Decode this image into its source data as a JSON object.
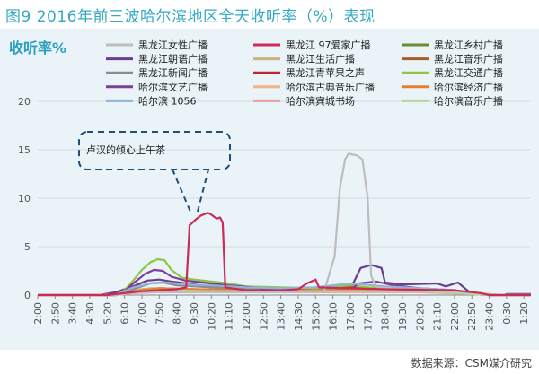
{
  "page_title": "图9  2016年前三波哈尔滨地区全天收听率（%）表现",
  "source_note": "数据来源：CSM媒介研究",
  "chart_data": {
    "type": "line",
    "title": "",
    "ylabel": "收听率%",
    "xlabel": "",
    "ylim": [
      0,
      20
    ],
    "yticks": [
      0,
      5,
      10,
      15,
      20
    ],
    "grid": true,
    "legend_position": "top",
    "x_tick_labels": [
      "2:00",
      "2:50",
      "3:40",
      "4:30",
      "5:20",
      "6:10",
      "7:00",
      "7:50",
      "8:40",
      "9:30",
      "10:20",
      "11:10",
      "12:00",
      "12:50",
      "13:40",
      "14:30",
      "15:20",
      "16:10",
      "17:00",
      "17:50",
      "18:40",
      "19:30",
      "20:20",
      "21:10",
      "22:00",
      "22:50",
      "23:40",
      "0:30",
      "1:20"
    ],
    "annotation": "卢汉的倾心上午茶",
    "series": [
      {
        "name": "黑龙江女性广播",
        "color": "#bdbdbd",
        "points": [
          [
            0,
            0
          ],
          [
            4.5,
            0
          ],
          [
            5,
            0.2
          ],
          [
            6,
            0.3
          ],
          [
            10,
            0.3
          ],
          [
            14,
            0.3
          ],
          [
            16.5,
            0.4
          ],
          [
            17.1,
            4
          ],
          [
            17.4,
            11
          ],
          [
            17.7,
            14
          ],
          [
            17.9,
            14.6
          ],
          [
            18.4,
            14.4
          ],
          [
            18.7,
            14
          ],
          [
            19,
            10
          ],
          [
            19.2,
            2
          ],
          [
            19.5,
            0.8
          ],
          [
            22,
            0.5
          ],
          [
            25,
            0.3
          ],
          [
            26,
            0.1
          ],
          [
            27,
            0
          ],
          [
            28.4,
            0
          ]
        ]
      },
      {
        "name": "黑龙江 97爱家广播",
        "color": "#cc2a57",
        "points": [
          [
            0,
            0
          ],
          [
            4,
            0
          ],
          [
            5,
            0.2
          ],
          [
            6,
            0.4
          ],
          [
            7,
            0.5
          ],
          [
            8,
            0.6
          ],
          [
            8.55,
            0.8
          ],
          [
            8.75,
            7.2
          ],
          [
            9.1,
            7.8
          ],
          [
            9.4,
            8.2
          ],
          [
            9.8,
            8.5
          ],
          [
            10,
            8.3
          ],
          [
            10.3,
            7.9
          ],
          [
            10.5,
            8
          ],
          [
            10.65,
            7.5
          ],
          [
            10.8,
            0.8
          ],
          [
            12,
            0.5
          ],
          [
            14,
            0.5
          ],
          [
            15,
            0.6
          ],
          [
            15.5,
            1.2
          ],
          [
            16,
            1.6
          ],
          [
            16.2,
            0.8
          ],
          [
            18,
            0.7
          ],
          [
            20,
            0.6
          ],
          [
            24,
            0.5
          ],
          [
            25.5,
            0.2
          ],
          [
            26,
            0
          ],
          [
            28.4,
            0
          ]
        ]
      },
      {
        "name": "黑龙江乡村广播",
        "color": "#6a8b34",
        "points": [
          [
            0,
            0
          ],
          [
            4.5,
            0
          ],
          [
            5,
            0.3
          ],
          [
            6,
            0.6
          ],
          [
            7,
            0.7
          ],
          [
            9,
            0.6
          ],
          [
            12,
            0.5
          ],
          [
            16,
            0.5
          ],
          [
            20,
            0.5
          ],
          [
            24,
            0.4
          ],
          [
            25,
            0.1
          ],
          [
            26,
            0
          ],
          [
            28.4,
            0
          ]
        ]
      },
      {
        "name": "黑龙江朝语广播",
        "color": "#6a3d8f",
        "points": [
          [
            0,
            0
          ],
          [
            3.5,
            0
          ],
          [
            4.5,
            0.3
          ],
          [
            5.5,
            0.9
          ],
          [
            6.3,
            1.5
          ],
          [
            7,
            1.6
          ],
          [
            7.7,
            1.4
          ],
          [
            9,
            1.1
          ],
          [
            11,
            0.8
          ],
          [
            14,
            0.6
          ],
          [
            16,
            0.6
          ],
          [
            18,
            0.6
          ],
          [
            18.6,
            2.8
          ],
          [
            19.2,
            3.1
          ],
          [
            19.8,
            2.8
          ],
          [
            20,
            1.3
          ],
          [
            21,
            1.1
          ],
          [
            23,
            1.2
          ],
          [
            23.5,
            0.9
          ],
          [
            24.2,
            1.3
          ],
          [
            24.8,
            0.4
          ],
          [
            25.2,
            0.1
          ],
          [
            26,
            0
          ],
          [
            26.8,
            0
          ],
          [
            27,
            0.1
          ],
          [
            28.4,
            0.1
          ]
        ]
      },
      {
        "name": "黑龙江生活广播",
        "color": "#c8b37f",
        "points": [
          [
            0,
            0
          ],
          [
            4.5,
            0
          ],
          [
            5.5,
            0.5
          ],
          [
            6.5,
            0.7
          ],
          [
            9,
            0.6
          ],
          [
            12,
            0.5
          ],
          [
            16,
            0.5
          ],
          [
            20,
            0.5
          ],
          [
            24,
            0.4
          ],
          [
            25,
            0.1
          ],
          [
            26,
            0
          ],
          [
            28.4,
            0
          ]
        ]
      },
      {
        "name": "黑龙江音乐广播",
        "color": "#a65d2a",
        "points": [
          [
            0,
            0
          ],
          [
            4.5,
            0
          ],
          [
            5.5,
            0.4
          ],
          [
            7,
            0.6
          ],
          [
            10,
            0.5
          ],
          [
            14,
            0.4
          ],
          [
            18,
            0.5
          ],
          [
            22,
            0.4
          ],
          [
            25,
            0.2
          ],
          [
            26,
            0
          ],
          [
            28.4,
            0
          ]
        ]
      },
      {
        "name": "黑龙江新闻广播",
        "color": "#8c8c8c",
        "points": [
          [
            0,
            0
          ],
          [
            4.5,
            0
          ],
          [
            5.5,
            0.6
          ],
          [
            6.5,
            1.2
          ],
          [
            7.2,
            1.3
          ],
          [
            8,
            1
          ],
          [
            10,
            0.8
          ],
          [
            12,
            0.6
          ],
          [
            16,
            0.6
          ],
          [
            20,
            0.5
          ],
          [
            24,
            0.4
          ],
          [
            25,
            0.1
          ],
          [
            26,
            0
          ],
          [
            28.4,
            0
          ]
        ]
      },
      {
        "name": "黑龙江青苹果之声",
        "color": "#c0272d",
        "points": [
          [
            0,
            0
          ],
          [
            4.5,
            0
          ],
          [
            5.5,
            0.3
          ],
          [
            7,
            0.5
          ],
          [
            10,
            0.5
          ],
          [
            14,
            0.4
          ],
          [
            15.6,
            0.7
          ],
          [
            16.5,
            0.9
          ],
          [
            18,
            0.9
          ],
          [
            19,
            0.6
          ],
          [
            22,
            0.4
          ],
          [
            25,
            0.1
          ],
          [
            26,
            0
          ],
          [
            28.4,
            0
          ]
        ]
      },
      {
        "name": "黑龙江交通广播",
        "color": "#8dc641",
        "points": [
          [
            0,
            0
          ],
          [
            4.5,
            0
          ],
          [
            5,
            0.5
          ],
          [
            5.5,
            1.5
          ],
          [
            6,
            2.6
          ],
          [
            6.5,
            3.4
          ],
          [
            6.9,
            3.7
          ],
          [
            7.3,
            3.6
          ],
          [
            7.7,
            2.6
          ],
          [
            8.3,
            1.8
          ],
          [
            9,
            1.6
          ],
          [
            10,
            1.4
          ],
          [
            11,
            1.2
          ],
          [
            12,
            0.9
          ],
          [
            14,
            0.8
          ],
          [
            16,
            0.7
          ],
          [
            18,
            1
          ],
          [
            19,
            0.8
          ],
          [
            22,
            0.6
          ],
          [
            24,
            0.4
          ],
          [
            25,
            0.1
          ],
          [
            26,
            0
          ],
          [
            28.4,
            0
          ]
        ]
      },
      {
        "name": "哈尔滨文艺广播",
        "color": "#7e3f98",
        "points": [
          [
            0,
            0
          ],
          [
            4.5,
            0
          ],
          [
            5,
            0.4
          ],
          [
            5.5,
            1.2
          ],
          [
            6.2,
            2.2
          ],
          [
            6.7,
            2.6
          ],
          [
            7.2,
            2.5
          ],
          [
            7.7,
            1.9
          ],
          [
            8.5,
            1.5
          ],
          [
            9.5,
            1.3
          ],
          [
            11,
            1
          ],
          [
            13,
            0.7
          ],
          [
            15,
            0.5
          ],
          [
            17,
            0.5
          ],
          [
            18,
            0.6
          ],
          [
            18.5,
            1.2
          ],
          [
            19.5,
            1.4
          ],
          [
            20.5,
            1
          ],
          [
            22,
            0.7
          ],
          [
            24,
            0.5
          ],
          [
            25,
            0.1
          ],
          [
            26,
            0
          ],
          [
            28.4,
            0
          ]
        ]
      },
      {
        "name": "哈尔滨古典音乐广播",
        "color": "#f4b183",
        "points": [
          [
            0,
            0
          ],
          [
            4.5,
            0
          ],
          [
            5.5,
            0.3
          ],
          [
            7,
            0.5
          ],
          [
            10,
            0.4
          ],
          [
            14,
            0.4
          ],
          [
            18,
            0.5
          ],
          [
            22,
            0.4
          ],
          [
            25,
            0.2
          ],
          [
            26,
            0
          ],
          [
            28.4,
            0
          ]
        ]
      },
      {
        "name": "哈尔滨经济广播",
        "color": "#e87d2c",
        "points": [
          [
            0,
            0
          ],
          [
            4.5,
            0
          ],
          [
            5.5,
            0.4
          ],
          [
            7,
            0.7
          ],
          [
            9,
            0.6
          ],
          [
            12,
            0.5
          ],
          [
            16,
            0.5
          ],
          [
            20,
            0.5
          ],
          [
            24,
            0.4
          ],
          [
            25,
            0.1
          ],
          [
            26,
            0
          ],
          [
            28.4,
            0
          ]
        ]
      },
      {
        "name": "哈尔滨 1056",
        "color": "#8fb3d9",
        "points": [
          [
            0,
            0
          ],
          [
            4.5,
            0
          ],
          [
            5.5,
            0.8
          ],
          [
            6.5,
            1.2
          ],
          [
            7.5,
            1.3
          ],
          [
            8.5,
            1.1
          ],
          [
            10,
            1
          ],
          [
            12,
            0.8
          ],
          [
            14,
            0.7
          ],
          [
            16,
            0.8
          ],
          [
            18,
            1.2
          ],
          [
            20,
            0.9
          ],
          [
            22,
            0.7
          ],
          [
            24,
            0.5
          ],
          [
            25,
            0.2
          ],
          [
            26,
            0
          ],
          [
            28.4,
            0
          ]
        ]
      },
      {
        "name": "哈尔滨宾城书场",
        "color": "#e8a0a0",
        "points": [
          [
            0,
            0
          ],
          [
            4.5,
            0
          ],
          [
            5.5,
            0.2
          ],
          [
            7,
            0.3
          ],
          [
            10,
            0.3
          ],
          [
            14,
            0.3
          ],
          [
            18,
            0.3
          ],
          [
            22,
            0.3
          ],
          [
            25,
            0.1
          ],
          [
            26,
            0
          ],
          [
            28.4,
            0
          ]
        ]
      },
      {
        "name": "哈尔滨音乐广播",
        "color": "#b7d69a",
        "points": [
          [
            0,
            0
          ],
          [
            4.5,
            0
          ],
          [
            5.5,
            0.3
          ],
          [
            7,
            0.5
          ],
          [
            10,
            0.4
          ],
          [
            14,
            0.4
          ],
          [
            18,
            0.4
          ],
          [
            22,
            0.4
          ],
          [
            25,
            0.1
          ],
          [
            26,
            0
          ],
          [
            28.4,
            0
          ]
        ]
      }
    ]
  }
}
